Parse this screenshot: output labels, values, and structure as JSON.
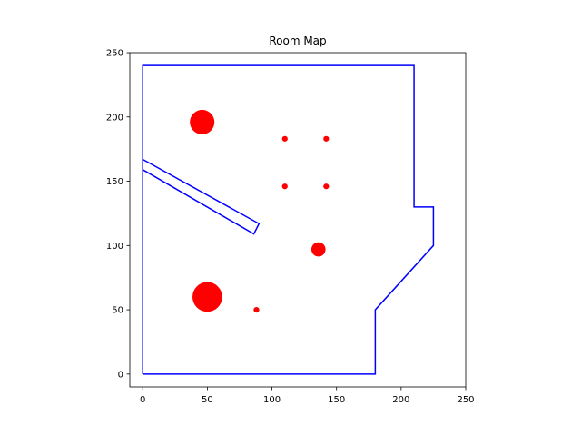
{
  "chart_data": {
    "type": "scatter",
    "title": "Room Map",
    "xlabel": "",
    "ylabel": "",
    "xlim": [
      -10,
      250
    ],
    "ylim": [
      -10,
      250
    ],
    "xticks": [
      0,
      50,
      100,
      150,
      200,
      250
    ],
    "yticks": [
      0,
      50,
      100,
      150,
      200,
      250
    ],
    "grid": false,
    "outline_color": "#0000ff",
    "marker_color": "#ff0000",
    "walls": [
      [
        [
          0,
          0
        ],
        [
          180,
          0
        ],
        [
          180,
          50
        ],
        [
          225,
          100
        ],
        [
          225,
          130
        ],
        [
          210,
          130
        ],
        [
          210,
          240
        ],
        [
          0,
          240
        ],
        [
          0,
          0
        ]
      ]
    ],
    "obstacles": [
      [
        [
          0,
          159
        ],
        [
          86,
          109
        ],
        [
          90,
          117
        ],
        [
          0,
          167
        ]
      ]
    ],
    "points": [
      {
        "x": 46,
        "y": 196,
        "r": 9.5
      },
      {
        "x": 50,
        "y": 60,
        "r": 11.5
      },
      {
        "x": 110,
        "y": 183,
        "r": 2.2
      },
      {
        "x": 142,
        "y": 183,
        "r": 2.2
      },
      {
        "x": 110,
        "y": 146,
        "r": 2.2
      },
      {
        "x": 142,
        "y": 146,
        "r": 2.2
      },
      {
        "x": 136,
        "y": 97,
        "r": 5.5
      },
      {
        "x": 88,
        "y": 50,
        "r": 2.2
      }
    ]
  }
}
